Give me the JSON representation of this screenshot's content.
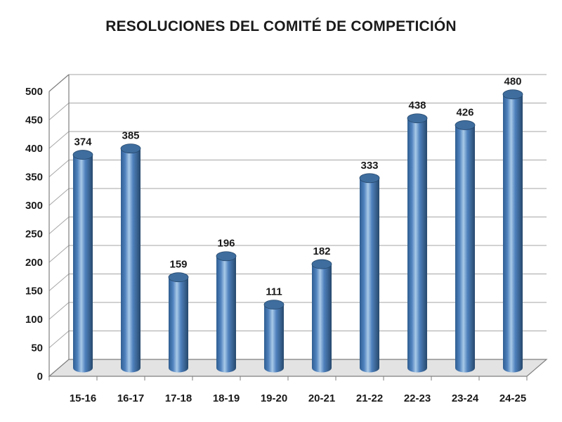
{
  "title": "RESOLUCIONES DEL COMITÉ DE COMPETICIÓN",
  "chart_data": {
    "type": "bar",
    "subtype": "3d-cylinder",
    "title": "RESOLUCIONES DEL COMITÉ DE COMPETICIÓN",
    "categories": [
      "15-16",
      "16-17",
      "17-18",
      "18-19",
      "19-20",
      "20-21",
      "21-22",
      "22-23",
      "23-24",
      "24-25"
    ],
    "values": [
      374,
      385,
      159,
      196,
      111,
      182,
      333,
      438,
      426,
      480
    ],
    "xlabel": "",
    "ylabel": "",
    "ylim": [
      0,
      500
    ],
    "ytick_step": 50,
    "grid": true,
    "legend": false,
    "data_labels": true,
    "colors": {
      "bar_main": "#4f81bd",
      "bar_light": "#a8c9e8",
      "bar_dark": "#2f5e91",
      "bar_edge": "#27496d",
      "bar_top": "#3e6d9e",
      "grid": "#a6a6a6",
      "axis": "#7f7f7f",
      "floor": "#e3e3e3",
      "text": "#1a1a1a"
    }
  }
}
